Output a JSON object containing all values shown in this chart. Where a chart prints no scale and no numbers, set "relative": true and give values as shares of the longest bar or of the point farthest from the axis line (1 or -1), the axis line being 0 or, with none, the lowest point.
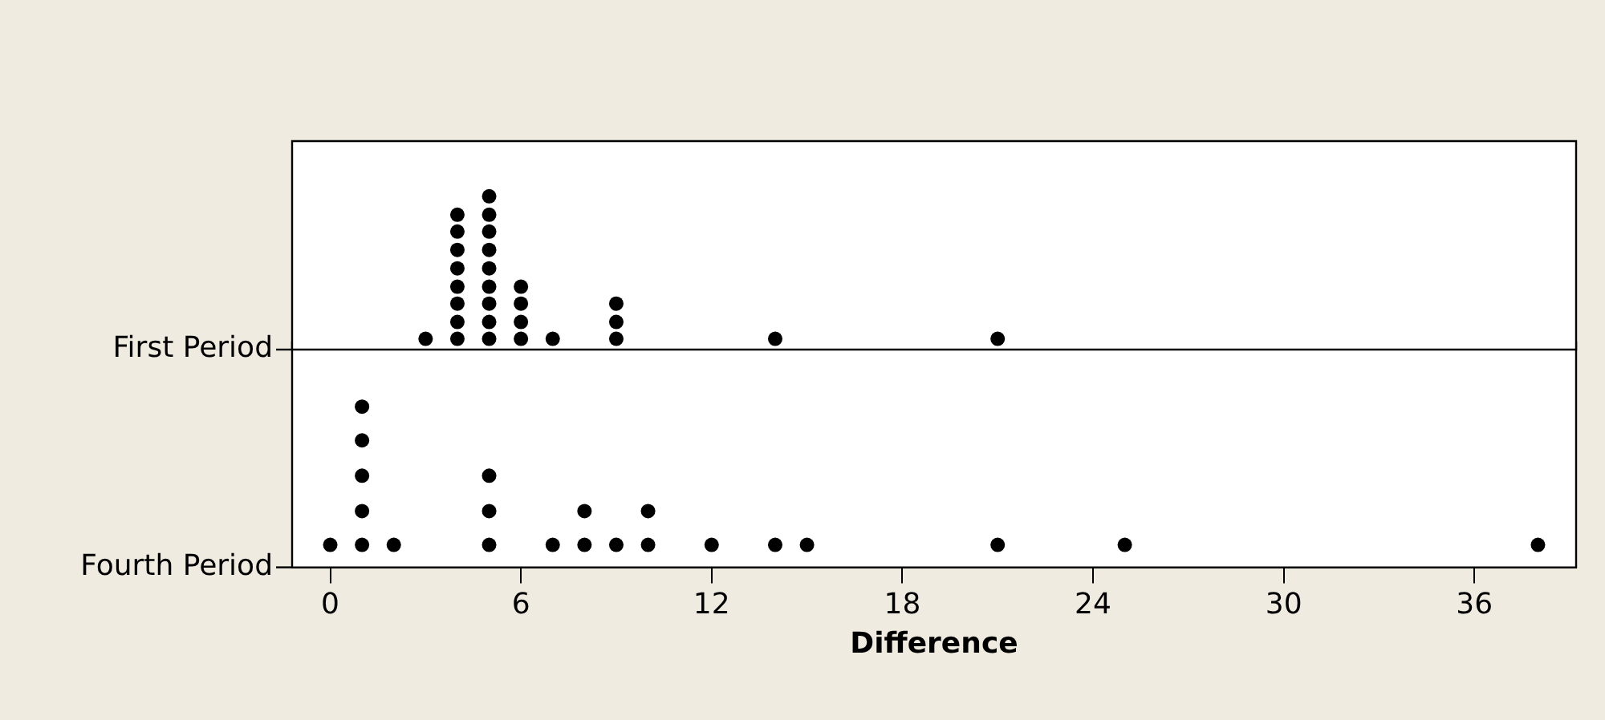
{
  "chart_data": [
    {
      "type": "scatter",
      "ylabel": "First Period",
      "relative": true,
      "xlim": [
        -1.2,
        39.2
      ],
      "tick_labels": false,
      "grid": false,
      "legend": false,
      "marker": "circle",
      "series": [
        {
          "color": "#000000",
          "x": [
            3,
            4,
            4,
            4,
            4,
            4,
            4,
            4,
            4,
            5,
            5,
            5,
            5,
            5,
            5,
            5,
            5,
            5,
            6,
            6,
            6,
            6,
            7,
            9,
            9,
            9,
            14,
            21
          ],
          "values": [
            0.07,
            0.07,
            0.18,
            0.3,
            0.41,
            0.53,
            0.65,
            0.77,
            0.88,
            0.07,
            0.18,
            0.3,
            0.41,
            0.53,
            0.65,
            0.77,
            0.88,
            1,
            0.07,
            0.18,
            0.3,
            0.41,
            0.07,
            0.07,
            0.18,
            0.3,
            0.07,
            0.07
          ]
        }
      ]
    },
    {
      "type": "scatter",
      "ylabel": "Fourth Period",
      "xlabel": "Difference",
      "relative": true,
      "xlim": [
        -1.2,
        39.2
      ],
      "xticks": [
        0,
        6,
        12,
        18,
        24,
        30,
        36
      ],
      "tick_labels": "x",
      "grid": false,
      "legend": false,
      "marker": "circle",
      "series": [
        {
          "color": "#000000",
          "x": [
            0,
            1,
            1,
            1,
            1,
            1,
            2,
            5,
            5,
            5,
            7,
            8,
            8,
            9,
            10,
            10,
            12,
            14,
            15,
            21,
            25,
            38
          ],
          "values": [
            0.14,
            0.14,
            0.35,
            0.57,
            0.79,
            1,
            0.14,
            0.14,
            0.35,
            0.57,
            0.14,
            0.14,
            0.35,
            0.14,
            0.14,
            0.35,
            0.14,
            0.14,
            0.14,
            0.14,
            0.14,
            0.14
          ]
        }
      ]
    }
  ]
}
